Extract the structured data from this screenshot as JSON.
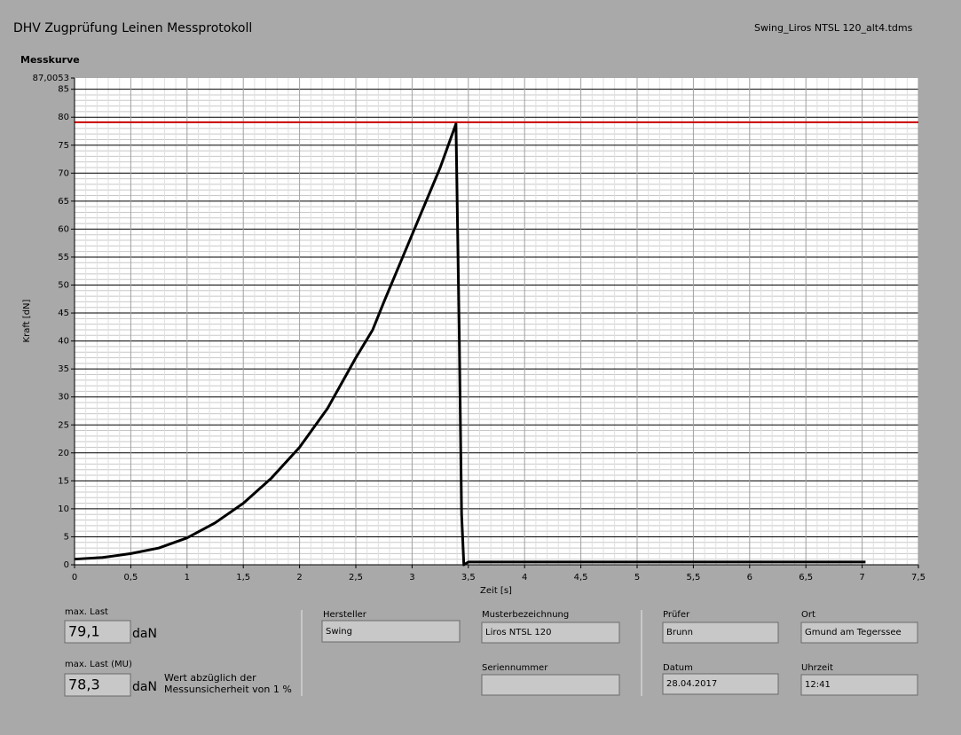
{
  "header": {
    "title": "DHV Zugprüfung Leinen Messprotokoll",
    "file": "Swing_Liros NTSL 120_alt4.tdms"
  },
  "chart_data": {
    "type": "line",
    "title": "Messkurve",
    "x_label": "Zeit [s]",
    "y_label": "Kraft [dN]",
    "xlim": [
      0,
      7.5
    ],
    "ylim": [
      0,
      87.0053
    ],
    "xticks": [
      0,
      {
        "value": 0.5,
        "label": "0,5"
      },
      1,
      {
        "value": 1.5,
        "label": "1,5"
      },
      2,
      {
        "value": 2.5,
        "label": "2,5"
      },
      3,
      {
        "value": 3.5,
        "label": "3,5"
      },
      4,
      {
        "value": 4.5,
        "label": "4,5"
      },
      5,
      {
        "value": 5.5,
        "label": "5,5"
      },
      6,
      {
        "value": 6.5,
        "label": "6,5"
      },
      7,
      {
        "value": 7.5,
        "label": "7,5"
      }
    ],
    "yticks": [
      0,
      5,
      10,
      15,
      20,
      25,
      30,
      35,
      40,
      45,
      50,
      55,
      60,
      65,
      70,
      75,
      80,
      85,
      {
        "value": 87.0053,
        "label": "87,0053"
      }
    ],
    "grid": true,
    "threshold": {
      "value": 79.1,
      "color": "#cc0000"
    },
    "series": [
      {
        "color": "#000000",
        "x": [
          0,
          0.25,
          0.5,
          0.75,
          1,
          1.25,
          1.5,
          1.75,
          2,
          2.25,
          2.5,
          2.65,
          2.75,
          3,
          3.25,
          3.39,
          3.42,
          3.44,
          3.46,
          3.5,
          7.03
        ],
        "values": [
          1,
          1.3,
          2,
          3,
          4.8,
          7.5,
          11,
          15.5,
          21,
          28,
          37,
          42,
          47,
          59,
          71,
          78.8,
          40,
          9,
          0,
          0.5,
          0.5
        ]
      }
    ]
  },
  "fields": {
    "max_last": {
      "label": "max. Last",
      "value": "79,1",
      "unit": "daN"
    },
    "max_last_mu": {
      "label": "max. Last (MU)",
      "value": "78,3",
      "unit": "daN",
      "note1": "Wert abzüglich der",
      "note2": "Messunsicherheit von 1 %"
    },
    "hersteller": {
      "label": "Hersteller",
      "value": "Swing"
    },
    "muster": {
      "label": "Musterbezeichnung",
      "value": "Liros NTSL 120"
    },
    "serie": {
      "label": "Seriennummer"
    },
    "pruefer": {
      "label": "Prüfer",
      "value": "Brunn"
    },
    "ort": {
      "label": "Ort",
      "value": "Gmund am Tegerssee"
    },
    "datum": {
      "label": "Datum",
      "value": "28.04.2017"
    },
    "uhrzeit": {
      "label": "Uhrzeit",
      "value": "12:41"
    }
  }
}
